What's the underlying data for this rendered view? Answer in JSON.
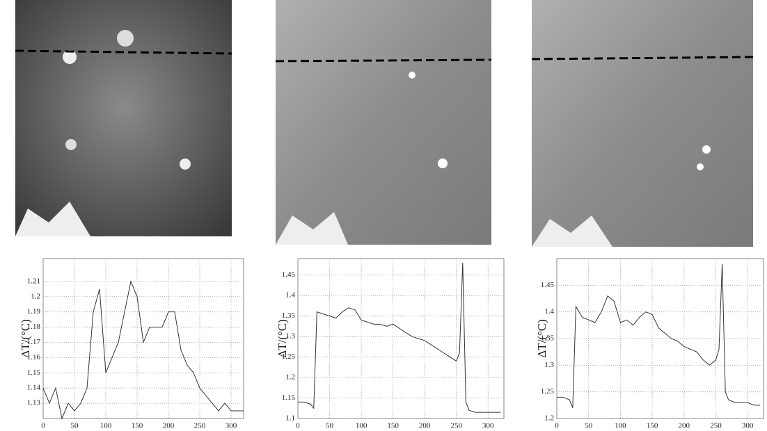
{
  "chart_data": [
    {
      "type": "line",
      "y_label": "ΔT/(°C)",
      "color": "#333333",
      "grid": true,
      "xlim": [
        0,
        320
      ],
      "xticks": [
        0,
        50,
        100,
        150,
        200,
        250,
        300
      ],
      "ylim": [
        1.12,
        1.225
      ],
      "yticks": [
        1.13,
        1.14,
        1.15,
        1.16,
        1.17,
        1.18,
        1.19,
        1.2,
        1.21
      ],
      "x": [
        0,
        10,
        20,
        30,
        40,
        50,
        60,
        70,
        80,
        90,
        100,
        110,
        120,
        130,
        140,
        150,
        160,
        170,
        180,
        190,
        200,
        210,
        220,
        230,
        240,
        250,
        260,
        270,
        280,
        290,
        300,
        310,
        320
      ],
      "values": [
        1.14,
        1.13,
        1.14,
        1.12,
        1.13,
        1.125,
        1.13,
        1.14,
        1.19,
        1.205,
        1.15,
        1.16,
        1.17,
        1.19,
        1.21,
        1.2,
        1.17,
        1.18,
        1.18,
        1.18,
        1.19,
        1.19,
        1.165,
        1.155,
        1.15,
        1.14,
        1.135,
        1.13,
        1.125,
        1.13,
        1.125,
        1.125,
        1.125
      ]
    },
    {
      "type": "line",
      "y_label": "ΔT/(°C)",
      "color": "#333333",
      "grid": true,
      "xlim": [
        0,
        325
      ],
      "xticks": [
        0,
        50,
        100,
        150,
        200,
        250,
        300
      ],
      "ylim": [
        1.1,
        1.49
      ],
      "yticks": [
        1.1,
        1.15,
        1.2,
        1.25,
        1.3,
        1.35,
        1.4,
        1.45
      ],
      "x": [
        0,
        10,
        20,
        25,
        30,
        40,
        50,
        60,
        70,
        80,
        90,
        100,
        110,
        120,
        130,
        140,
        150,
        160,
        170,
        180,
        190,
        200,
        210,
        220,
        230,
        240,
        250,
        255,
        260,
        265,
        270,
        280,
        290,
        300,
        310,
        320
      ],
      "values": [
        1.14,
        1.14,
        1.135,
        1.125,
        1.36,
        1.355,
        1.35,
        1.345,
        1.36,
        1.37,
        1.365,
        1.34,
        1.335,
        1.33,
        1.33,
        1.325,
        1.33,
        1.32,
        1.31,
        1.3,
        1.295,
        1.29,
        1.28,
        1.27,
        1.26,
        1.25,
        1.24,
        1.26,
        1.48,
        1.14,
        1.12,
        1.115,
        1.115,
        1.115,
        1.115,
        1.115
      ]
    },
    {
      "type": "line",
      "y_label": "ΔT/(°C)",
      "color": "#333333",
      "grid": true,
      "xlim": [
        0,
        325
      ],
      "xticks": [
        0,
        50,
        100,
        150,
        200,
        250,
        300
      ],
      "ylim": [
        1.2,
        1.5
      ],
      "yticks": [
        1.2,
        1.25,
        1.3,
        1.35,
        1.4,
        1.45
      ],
      "x": [
        0,
        10,
        20,
        25,
        30,
        40,
        50,
        60,
        70,
        80,
        90,
        100,
        110,
        120,
        130,
        140,
        150,
        160,
        170,
        180,
        190,
        200,
        210,
        220,
        230,
        240,
        250,
        255,
        260,
        265,
        270,
        280,
        290,
        300,
        310,
        320
      ],
      "values": [
        1.24,
        1.24,
        1.235,
        1.22,
        1.41,
        1.39,
        1.385,
        1.38,
        1.4,
        1.43,
        1.42,
        1.38,
        1.385,
        1.375,
        1.39,
        1.4,
        1.395,
        1.37,
        1.36,
        1.35,
        1.345,
        1.335,
        1.33,
        1.325,
        1.31,
        1.3,
        1.31,
        1.33,
        1.49,
        1.25,
        1.235,
        1.23,
        1.23,
        1.23,
        1.225,
        1.225
      ]
    }
  ]
}
